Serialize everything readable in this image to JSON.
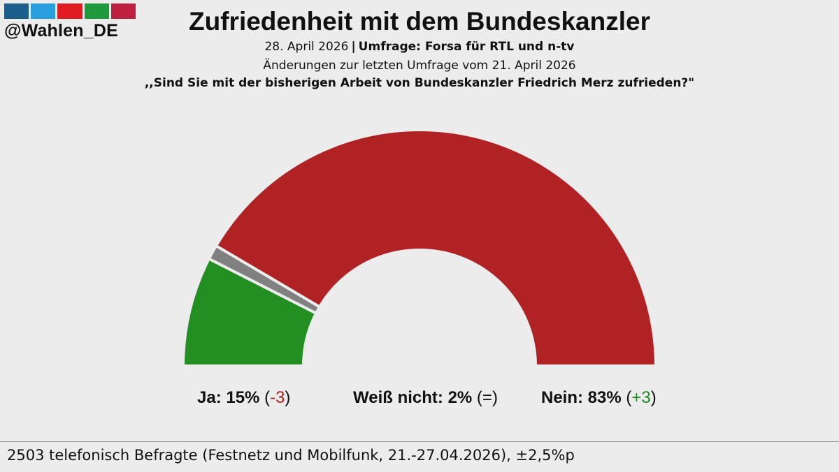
{
  "branding": {
    "handle": "@Wahlen_DE",
    "bar_colors": [
      "#1c5f8c",
      "#2a9fe0",
      "#e01b22",
      "#1e9a3c",
      "#c0203f"
    ]
  },
  "header": {
    "title": "Zufriedenheit mit dem Bundeskanzler",
    "date": "28. April 2026",
    "source": "Umfrage: Forsa für RTL und n-tv",
    "change_note": "Änderungen zur letzten Umfrage vom 21. April 2026",
    "question": ",,Sind Sie mit der bisherigen Arbeit von Bundeskanzler Friedrich Merz zufrieden?\""
  },
  "chart_data": {
    "type": "pie",
    "subtype": "semicircle",
    "categories": [
      "Ja",
      "Weiß nicht",
      "Nein"
    ],
    "values": [
      15,
      2,
      83
    ],
    "unit": "%",
    "changes": [
      "-3",
      "=",
      "+3"
    ],
    "colors": [
      "#238e22",
      "#808080",
      "#b02224"
    ]
  },
  "legend": {
    "items": [
      {
        "label": "Ja:",
        "value": "15%",
        "open": "(",
        "change": "-3",
        "close": ")"
      },
      {
        "label": "Weiß nicht:",
        "value": "2%",
        "open": "(",
        "change": "=",
        "close": ")"
      },
      {
        "label": "Nein:",
        "value": "83%",
        "open": "(",
        "change": "+3",
        "close": ")"
      }
    ]
  },
  "footer": {
    "text": "2503 telefonisch Befragte (Festnetz und Mobilfunk, 21.-27.04.2026), ±2,5%p"
  }
}
